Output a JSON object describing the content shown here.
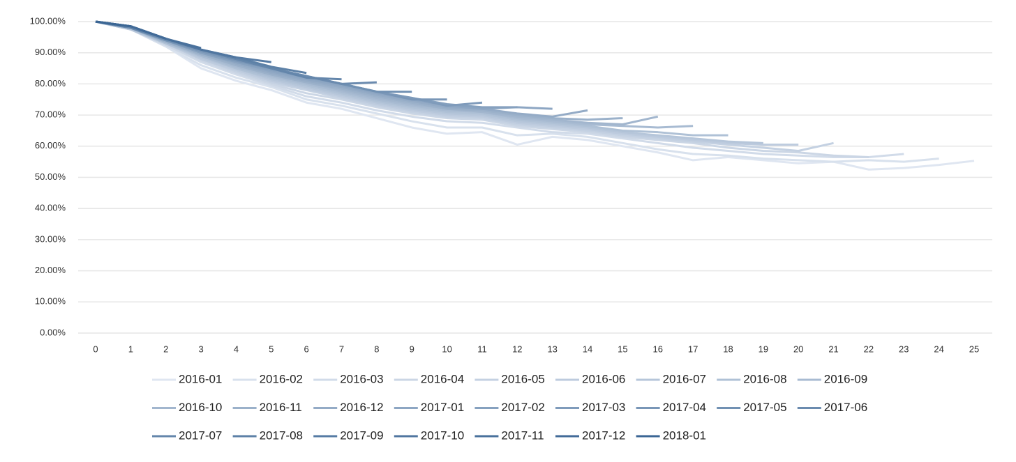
{
  "chart_data": {
    "type": "line",
    "x": [
      0,
      1,
      2,
      3,
      4,
      5,
      6,
      7,
      8,
      9,
      10,
      11,
      12,
      13,
      14,
      15,
      16,
      17,
      18,
      19,
      20,
      21,
      22,
      23,
      24,
      25
    ],
    "ylim": [
      0,
      100
    ],
    "yticks": [
      {
        "value": 0,
        "label": "0.00%"
      },
      {
        "value": 10,
        "label": "10.00%"
      },
      {
        "value": 20,
        "label": "20.00%"
      },
      {
        "value": 30,
        "label": "30.00%"
      },
      {
        "value": 40,
        "label": "40.00%"
      },
      {
        "value": 50,
        "label": "50.00%"
      },
      {
        "value": 60,
        "label": "60.00%"
      },
      {
        "value": 70,
        "label": "70.00%"
      },
      {
        "value": 80,
        "label": "80.00%"
      },
      {
        "value": 90,
        "label": "90.00%"
      },
      {
        "value": 100,
        "label": "100.00%"
      }
    ],
    "grid": true,
    "legend": "bottom",
    "series": [
      {
        "name": "2016-01",
        "color": "#dfe6f1",
        "values": [
          100,
          97.5,
          92,
          85,
          81,
          78,
          74,
          72,
          69,
          66,
          64,
          64.5,
          60.5,
          63,
          62,
          60,
          58,
          55.5,
          56.5,
          55.5,
          54.5,
          55,
          52.5,
          53,
          54,
          55.3
        ]
      },
      {
        "name": "2016-02",
        "color": "#d8e1ed",
        "values": [
          100,
          97.5,
          92,
          86,
          82,
          79,
          75,
          73,
          70.5,
          68,
          66,
          66,
          63.5,
          64,
          63,
          61,
          59,
          57.5,
          57,
          56,
          55.5,
          55,
          55.5,
          55,
          56,
          null
        ]
      },
      {
        "name": "2016-03",
        "color": "#d1dbe9",
        "values": [
          100,
          97.5,
          92.5,
          87,
          83,
          79.5,
          76,
          74,
          71.5,
          69.5,
          68,
          67.5,
          66,
          64.5,
          64,
          62.5,
          61,
          59.5,
          58.5,
          57.5,
          57,
          56.5,
          56.5,
          57.5,
          null,
          null
        ]
      },
      {
        "name": "2016-04",
        "color": "#cbd6e5",
        "values": [
          100,
          97.5,
          92.5,
          87.5,
          83.5,
          80,
          77,
          75,
          72.5,
          70.5,
          69,
          68.5,
          66.5,
          65.5,
          64.5,
          63,
          62,
          61,
          59.5,
          58.5,
          58,
          57,
          56.5,
          null,
          null,
          null
        ]
      },
      {
        "name": "2016-05",
        "color": "#c4d1e2",
        "values": [
          100,
          97.5,
          93,
          88,
          84,
          80.5,
          78,
          75.5,
          73,
          71,
          69.5,
          69,
          67,
          66,
          65,
          63.5,
          62.5,
          61.5,
          60.5,
          59.5,
          58.5,
          61,
          null,
          null,
          null,
          null
        ]
      },
      {
        "name": "2016-06",
        "color": "#bdcbde",
        "values": [
          100,
          97.5,
          93,
          88,
          84.5,
          81,
          78.5,
          76,
          73.5,
          71.5,
          70,
          69.5,
          67.5,
          66.5,
          65.5,
          64,
          63,
          62,
          61,
          60.5,
          60.5,
          null,
          null,
          null,
          null,
          null
        ]
      },
      {
        "name": "2016-07",
        "color": "#b6c6da",
        "values": [
          100,
          97.5,
          93,
          88.5,
          85,
          81.5,
          79,
          76.5,
          74,
          72,
          70.5,
          70,
          68,
          67,
          66,
          64.5,
          63.5,
          62.5,
          61.5,
          61,
          null,
          null,
          null,
          null,
          null,
          null
        ]
      },
      {
        "name": "2016-08",
        "color": "#afc1d6",
        "values": [
          100,
          98,
          93,
          89,
          85,
          82,
          79.5,
          77,
          74.5,
          72.5,
          71,
          70.5,
          68.5,
          67.5,
          66.5,
          65,
          64.5,
          63.5,
          63.5,
          null,
          null,
          null,
          null,
          null,
          null,
          null
        ]
      },
      {
        "name": "2016-09",
        "color": "#a8bbd2",
        "values": [
          100,
          98,
          93.5,
          89,
          85.5,
          82.5,
          80,
          77.5,
          75,
          73,
          71.5,
          71,
          69,
          68,
          67,
          66.5,
          66,
          66.5,
          null,
          null,
          null,
          null,
          null,
          null,
          null,
          null
        ]
      },
      {
        "name": "2016-10",
        "color": "#a2b6ce",
        "values": [
          100,
          98,
          93.5,
          89.5,
          86,
          83,
          80.5,
          78,
          75.5,
          73.5,
          72,
          71,
          69.5,
          68.5,
          67.5,
          67,
          69.5,
          null,
          null,
          null,
          null,
          null,
          null,
          null,
          null,
          null
        ]
      },
      {
        "name": "2016-11",
        "color": "#9bb1ca",
        "values": [
          100,
          98,
          93.5,
          89.5,
          86,
          83,
          80.5,
          78.5,
          76,
          74,
          72,
          71.5,
          70,
          69,
          68.5,
          69,
          null,
          null,
          null,
          null,
          null,
          null,
          null,
          null,
          null,
          null
        ]
      },
      {
        "name": "2016-12",
        "color": "#94abc6",
        "values": [
          100,
          98,
          94,
          90,
          86.5,
          83.5,
          81,
          79,
          76.5,
          74.5,
          72.5,
          72,
          70.5,
          69.5,
          71.5,
          null,
          null,
          null,
          null,
          null,
          null,
          null,
          null,
          null,
          null,
          null
        ]
      },
      {
        "name": "2017-01",
        "color": "#8da6c3",
        "values": [
          100,
          98,
          94,
          90,
          87,
          84,
          81.5,
          79.5,
          77,
          75,
          73,
          72,
          72.5,
          72,
          null,
          null,
          null,
          null,
          null,
          null,
          null,
          null,
          null,
          null,
          null,
          null
        ]
      },
      {
        "name": "2017-02",
        "color": "#86a1bf",
        "values": [
          100,
          98,
          94,
          90,
          87,
          84.5,
          82,
          80,
          77.5,
          75.5,
          73.5,
          72.5,
          72.5,
          null,
          null,
          null,
          null,
          null,
          null,
          null,
          null,
          null,
          null,
          null,
          null,
          null
        ]
      },
      {
        "name": "2017-03",
        "color": "#7f9bbb",
        "values": [
          100,
          98,
          94,
          90.5,
          87.5,
          85,
          82.5,
          80,
          77.5,
          75.5,
          73,
          74,
          null,
          null,
          null,
          null,
          null,
          null,
          null,
          null,
          null,
          null,
          null,
          null,
          null,
          null
        ]
      },
      {
        "name": "2017-04",
        "color": "#7996b7",
        "values": [
          100,
          98,
          94,
          90.5,
          87.5,
          85,
          82.5,
          80,
          77.5,
          75,
          75,
          null,
          null,
          null,
          null,
          null,
          null,
          null,
          null,
          null,
          null,
          null,
          null,
          null,
          null,
          null
        ]
      },
      {
        "name": "2017-05",
        "color": "#7191b3",
        "values": [
          100,
          98,
          94,
          91,
          88,
          85,
          82.5,
          80,
          77.5,
          77.5,
          null,
          null,
          null,
          null,
          null,
          null,
          null,
          null,
          null,
          null,
          null,
          null,
          null,
          null,
          null,
          null
        ]
      },
      {
        "name": "2017-06",
        "color": "#6b8baf",
        "values": [
          100,
          98,
          94.5,
          91,
          88,
          85,
          82.5,
          80,
          80.5,
          null,
          null,
          null,
          null,
          null,
          null,
          null,
          null,
          null,
          null,
          null,
          null,
          null,
          null,
          null,
          null,
          null
        ]
      },
      {
        "name": "2017-07",
        "color": "#6486ab",
        "values": [
          100,
          98,
          94.5,
          91,
          88,
          85,
          82,
          81.5,
          null,
          null,
          null,
          null,
          null,
          null,
          null,
          null,
          null,
          null,
          null,
          null,
          null,
          null,
          null,
          null,
          null,
          null
        ]
      },
      {
        "name": "2017-08",
        "color": "#5d81a7",
        "values": [
          100,
          98.5,
          94.5,
          91,
          88.5,
          85.5,
          83.5,
          null,
          null,
          null,
          null,
          null,
          null,
          null,
          null,
          null,
          null,
          null,
          null,
          null,
          null,
          null,
          null,
          null,
          null,
          null
        ]
      },
      {
        "name": "2017-09",
        "color": "#567ba4",
        "values": [
          100,
          98.5,
          94.5,
          91,
          88.5,
          87,
          null,
          null,
          null,
          null,
          null,
          null,
          null,
          null,
          null,
          null,
          null,
          null,
          null,
          null,
          null,
          null,
          null,
          null,
          null,
          null
        ]
      },
      {
        "name": "2017-10",
        "color": "#5076a0",
        "values": [
          100,
          98.5,
          94.5,
          91,
          88.5,
          null,
          null,
          null,
          null,
          null,
          null,
          null,
          null,
          null,
          null,
          null,
          null,
          null,
          null,
          null,
          null,
          null,
          null,
          null,
          null,
          null
        ]
      },
      {
        "name": "2017-11",
        "color": "#49719c",
        "values": [
          100,
          98.5,
          94.5,
          91.5,
          null,
          null,
          null,
          null,
          null,
          null,
          null,
          null,
          null,
          null,
          null,
          null,
          null,
          null,
          null,
          null,
          null,
          null,
          null,
          null,
          null,
          null
        ]
      },
      {
        "name": "2017-12",
        "color": "#426b98",
        "values": [
          100,
          98.5,
          94.5,
          null,
          null,
          null,
          null,
          null,
          null,
          null,
          null,
          null,
          null,
          null,
          null,
          null,
          null,
          null,
          null,
          null,
          null,
          null,
          null,
          null,
          null,
          null
        ]
      },
      {
        "name": "2018-01",
        "color": "#3b6694",
        "values": [
          100,
          98.5,
          null,
          null,
          null,
          null,
          null,
          null,
          null,
          null,
          null,
          null,
          null,
          null,
          null,
          null,
          null,
          null,
          null,
          null,
          null,
          null,
          null,
          null,
          null,
          null
        ]
      }
    ]
  }
}
